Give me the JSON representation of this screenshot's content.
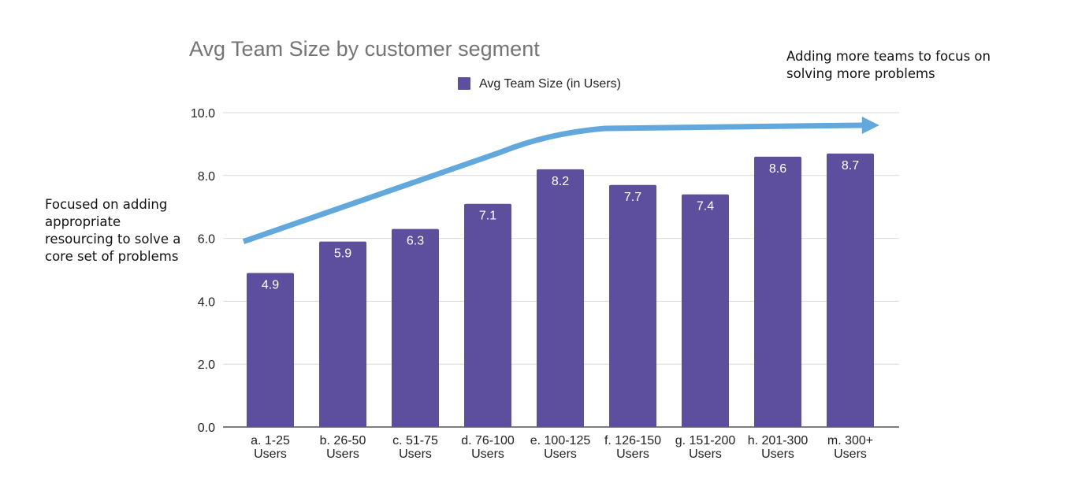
{
  "chart_data": {
    "type": "bar",
    "title": "Avg Team Size by customer segment",
    "xlabel": "",
    "ylabel": "",
    "ylim": [
      0,
      10
    ],
    "yticks": [
      "0.0",
      "2.0",
      "4.0",
      "6.0",
      "8.0",
      "10.0"
    ],
    "ytick_values": [
      0,
      2,
      4,
      6,
      8,
      10
    ],
    "grid": true,
    "legend": {
      "placement": "top-center",
      "entries": [
        "Avg Team Size (in Users)"
      ]
    },
    "categories": [
      [
        "a. 1-25",
        "Users"
      ],
      [
        "b. 26-50",
        "Users"
      ],
      [
        "c. 51-75",
        "Users"
      ],
      [
        "d. 76-100",
        "Users"
      ],
      [
        "e. 100-125",
        "Users"
      ],
      [
        "f. 126-150",
        "Users"
      ],
      [
        "g. 151-200",
        "Users"
      ],
      [
        "h. 201-300",
        "Users"
      ],
      [
        "m. 300+",
        "Users"
      ]
    ],
    "series": [
      {
        "name": "Avg Team Size (in Users)",
        "color": "#5e4f9e",
        "values": [
          4.9,
          5.9,
          6.3,
          7.1,
          8.2,
          7.7,
          7.4,
          8.6,
          8.7
        ],
        "labels": [
          "4.9",
          "5.9",
          "6.3",
          "7.1",
          "8.2",
          "7.7",
          "7.4",
          "8.6",
          "8.7"
        ]
      }
    ],
    "trend_arrow": {
      "color": "#63a8dd",
      "points": [
        [
          0,
          5.9
        ],
        [
          4,
          9.1
        ],
        [
          5,
          9.5
        ],
        [
          8,
          9.6
        ]
      ],
      "end_x": 8.4
    },
    "annotations": {
      "left": "Focused on adding appropriate resourcing to solve a core set of problems",
      "right": "Adding more teams to focus on solving more problems"
    }
  },
  "colors": {
    "bar": "#5e4f9e",
    "grid": "#d9d9d9",
    "title": "#757575",
    "arrow": "#63a8dd"
  }
}
